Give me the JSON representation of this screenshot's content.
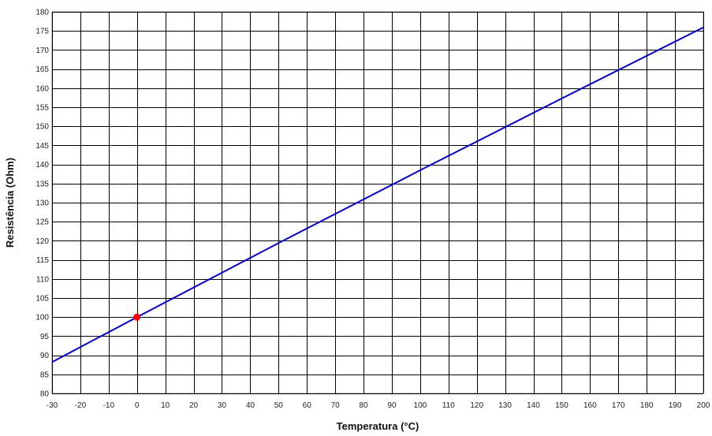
{
  "chart_data": {
    "type": "line",
    "title": "",
    "xlabel": "Temperatura (°C)",
    "ylabel": "Resistência (Ohm)",
    "xlim": [
      -30,
      200
    ],
    "ylim": [
      80,
      180
    ],
    "x_ticks": [
      -30,
      -20,
      -10,
      0,
      10,
      20,
      30,
      40,
      50,
      60,
      70,
      80,
      90,
      100,
      110,
      120,
      130,
      140,
      150,
      160,
      170,
      180,
      190,
      200
    ],
    "y_ticks": [
      80,
      85,
      90,
      95,
      100,
      105,
      110,
      115,
      120,
      125,
      130,
      135,
      140,
      145,
      150,
      155,
      160,
      165,
      170,
      175,
      180
    ],
    "grid": true,
    "series": [
      {
        "color": "#0000ee",
        "x": [
          -30,
          0,
          50,
          100,
          150,
          200
        ],
        "y": [
          88.2,
          100.0,
          119.4,
          138.5,
          157.3,
          175.9
        ]
      }
    ],
    "highlight_points": [
      {
        "x": 0,
        "y": 100,
        "color": "#ff0000"
      }
    ]
  }
}
